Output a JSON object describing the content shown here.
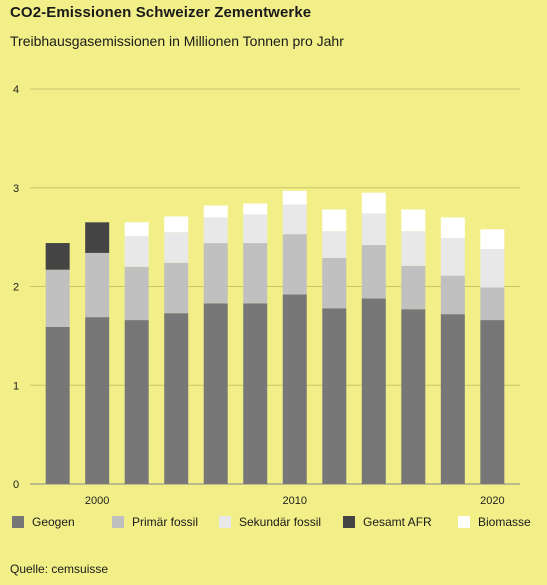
{
  "title": "CO2-Emissionen Schweizer Zementwerke",
  "subtitle": "Treibhausgasemissionen in Millionen Tonnen pro Jahr",
  "source": "Quelle: cemsuisse",
  "chart_data": {
    "type": "bar",
    "stacked": true,
    "title": "CO2-Emissionen Schweizer Zementwerke",
    "subtitle": "Treibhausgasemissionen in Millionen Tonnen pro Jahr",
    "x": [
      1998,
      2000,
      2002,
      2004,
      2006,
      2008,
      2010,
      2012,
      2014,
      2016,
      2018,
      2020
    ],
    "x_tick_labels": [
      "2000",
      "2010",
      "2020"
    ],
    "x_tick_values": [
      2000,
      2010,
      2020
    ],
    "xlim": [
      1996.6,
      2021.4
    ],
    "ylim": [
      0,
      4
    ],
    "y_ticks": [
      0,
      1,
      2,
      3,
      4
    ],
    "grid": true,
    "legend_position": "bottom",
    "series": [
      {
        "name": "Geogen",
        "color": "#777777",
        "values": [
          1.59,
          1.69,
          1.66,
          1.73,
          1.83,
          1.83,
          1.92,
          1.78,
          1.88,
          1.77,
          1.72,
          1.66
        ]
      },
      {
        "name": "Primär fossil",
        "color": "#c0c0c0",
        "values": [
          0.58,
          0.65,
          0.54,
          0.51,
          0.61,
          0.61,
          0.61,
          0.51,
          0.54,
          0.44,
          0.39,
          0.33
        ]
      },
      {
        "name": "Sekundär fossil",
        "color": "#e8e8e8",
        "values": [
          0,
          0,
          0.31,
          0.31,
          0.26,
          0.29,
          0.3,
          0.27,
          0.32,
          0.35,
          0.38,
          0.39
        ]
      },
      {
        "name": "Gesamt AFR",
        "color": "#444444",
        "values": [
          0.27,
          0.31,
          0,
          0,
          0,
          0,
          0,
          0,
          0,
          0,
          0,
          0
        ]
      },
      {
        "name": "Biomasse",
        "color": "#ffffff",
        "values": [
          0,
          0,
          0.14,
          0.16,
          0.12,
          0.11,
          0.14,
          0.22,
          0.21,
          0.22,
          0.21,
          0.2
        ]
      }
    ]
  }
}
